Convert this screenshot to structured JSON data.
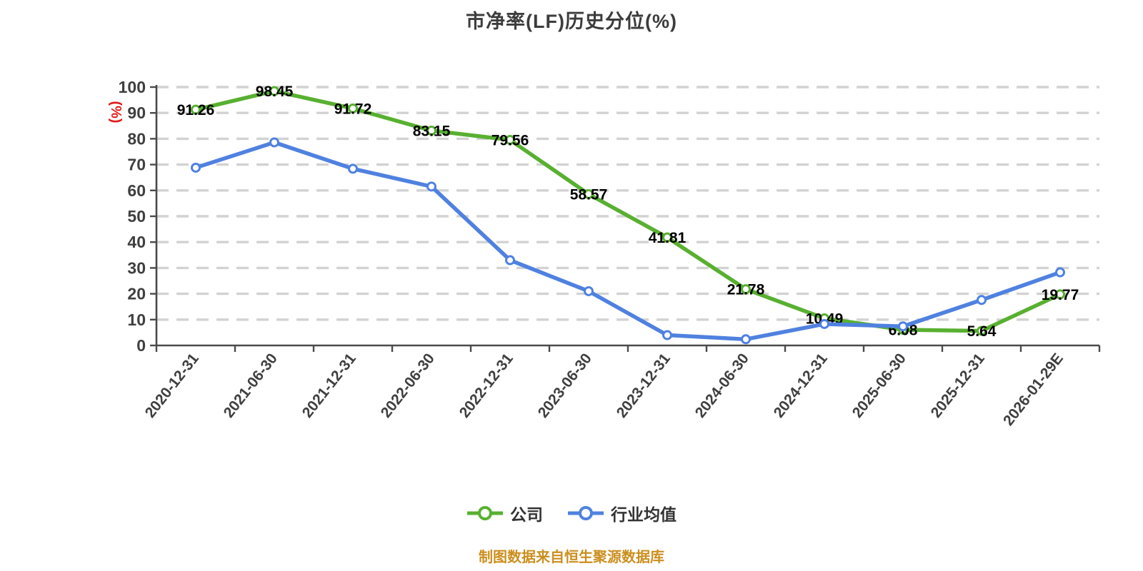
{
  "title": "市净率(LF)历史分位(%)",
  "y_axis_unit_label": "(%)",
  "footer_note": "制图数据来自恒生聚源数据库",
  "colors": {
    "company_green": "#58b030",
    "industry_blue": "#4f81e0",
    "gridline_gray": "#d2d2d2",
    "axis_gray": "#4a4a4a",
    "unit_label_red": "#e01b1b",
    "footer_gold": "#cc8f1f",
    "data_label_black": "#000000"
  },
  "legend": {
    "items": [
      {
        "label": "公司",
        "color": "#58b030"
      },
      {
        "label": "行业均值",
        "color": "#4f81e0"
      }
    ]
  },
  "chart_data": {
    "type": "line",
    "title": "市净率(LF)历史分位(%)",
    "ylabel": "(%)",
    "ylim": [
      0,
      100
    ],
    "y_ticks": [
      0,
      10,
      20,
      30,
      40,
      50,
      60,
      70,
      80,
      90,
      100
    ],
    "grid": "horizontal-dashed",
    "legend_position": "bottom",
    "categories": [
      "2020-12-31",
      "2021-06-30",
      "2021-12-31",
      "2022-06-30",
      "2022-12-31",
      "2023-06-30",
      "2023-12-31",
      "2024-06-30",
      "2024-12-31",
      "2025-06-30",
      "2025-12-31",
      "2026-01-29E"
    ],
    "series": [
      {
        "name": "公司",
        "color": "#58b030",
        "show_labels": true,
        "values": [
          91.26,
          98.45,
          91.72,
          83.15,
          79.56,
          58.57,
          41.81,
          21.78,
          10.49,
          6.08,
          5.64,
          19.77
        ]
      },
      {
        "name": "行业均值",
        "color": "#4f81e0",
        "show_labels": false,
        "values": [
          68.8,
          78.6,
          68.4,
          61.5,
          33.0,
          21.0,
          4.0,
          2.4,
          8.3,
          7.4,
          17.6,
          28.3
        ]
      }
    ]
  }
}
